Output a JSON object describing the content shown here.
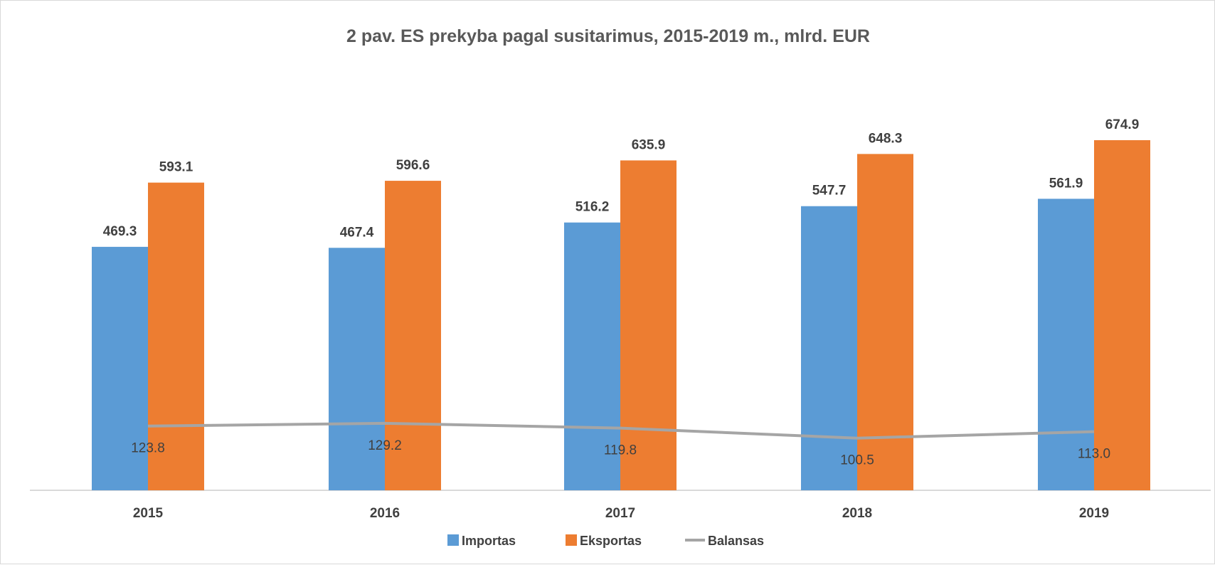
{
  "chart_data": {
    "type": "bar",
    "title": "2 pav. ES prekyba pagal susitarimus, 2015-2019 m., mlrd. EUR",
    "xlabel": "",
    "ylabel": "",
    "ylim": [
      0,
      900
    ],
    "grid": false,
    "legend_position": "bottom",
    "categories": [
      "2015",
      "2016",
      "2017",
      "2018",
      "2019"
    ],
    "series": [
      {
        "name": "Importas",
        "kind": "bar",
        "color": "#5b9bd5",
        "values": [
          469.3,
          467.4,
          516.2,
          547.7,
          561.9
        ],
        "labels": [
          "469.3",
          "467.4",
          "516.2",
          "547.7",
          "561.9"
        ]
      },
      {
        "name": "Eksportas",
        "kind": "bar",
        "color": "#ed7d31",
        "values": [
          593.1,
          596.6,
          635.9,
          648.3,
          674.9
        ],
        "labels": [
          "593.1",
          "596.6",
          "635.9",
          "648.3",
          "674.9"
        ]
      },
      {
        "name": "Balansas",
        "kind": "line",
        "color": "#a5a5a5",
        "values": [
          123.8,
          129.2,
          119.8,
          100.5,
          113.0
        ],
        "labels": [
          "123.8",
          "129.2",
          "119.8",
          "100.5",
          "113.0"
        ]
      }
    ]
  }
}
